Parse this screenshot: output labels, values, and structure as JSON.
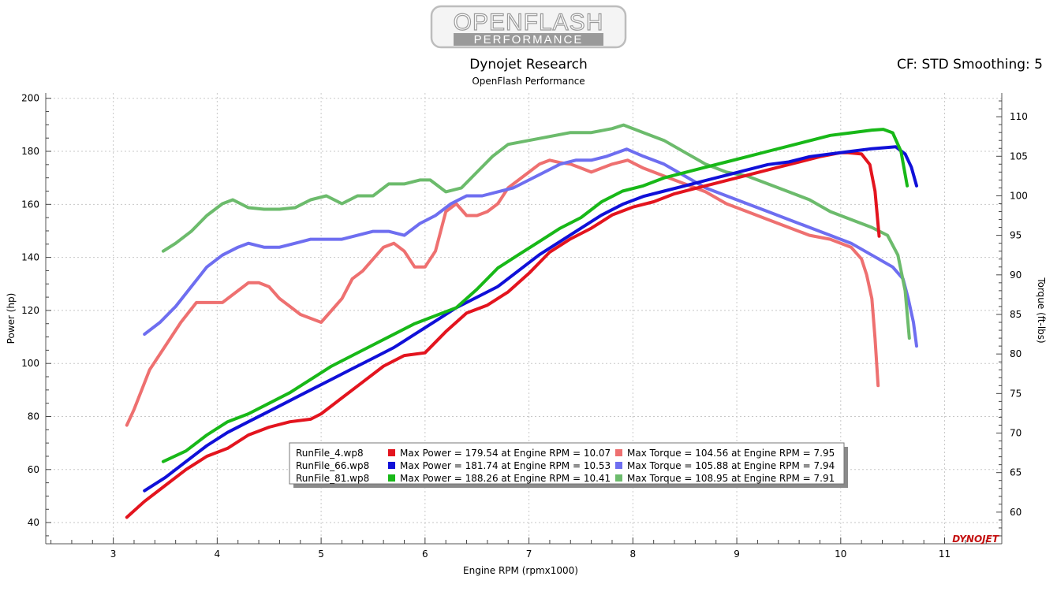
{
  "logo": {
    "line1": "OPENFLASH",
    "line2": "PERFORMANCE"
  },
  "header": {
    "title": "Dynojet Research",
    "subtitle": "OpenFlash Performance",
    "cf_label": "CF: STD Smoothing: 5"
  },
  "brand": "DYNOJET",
  "chart_data": {
    "type": "line",
    "xlabel": "Engine RPM (rpmx1000)",
    "ylabel": "Power (hp)",
    "y2label": "Torque (ft-lbs)",
    "xlim": [
      2.35,
      11.55
    ],
    "ylim": [
      32,
      202
    ],
    "y2lim": [
      56,
      113
    ],
    "xticks": [
      3,
      4,
      5,
      6,
      7,
      8,
      9,
      10,
      11
    ],
    "yticks": [
      40,
      60,
      80,
      100,
      120,
      140,
      160,
      180,
      200
    ],
    "y2ticks": [
      60,
      65,
      70,
      75,
      80,
      85,
      90,
      95,
      100,
      105,
      110
    ],
    "grid": true,
    "legend_position": "bottom-center",
    "series": [
      {
        "name": "RunFile_4.wp8 Power",
        "axis": "left",
        "color": "#e3141e",
        "x": [
          3.13,
          3.3,
          3.5,
          3.7,
          3.9,
          4.1,
          4.3,
          4.5,
          4.7,
          4.9,
          5.0,
          5.2,
          5.4,
          5.6,
          5.8,
          6.0,
          6.2,
          6.4,
          6.6,
          6.8,
          7.0,
          7.2,
          7.4,
          7.6,
          7.8,
          8.0,
          8.2,
          8.4,
          8.6,
          8.8,
          9.0,
          9.2,
          9.4,
          9.6,
          9.8,
          10.0,
          10.07,
          10.2,
          10.28,
          10.33,
          10.37
        ],
        "y": [
          42,
          48,
          54,
          60,
          65,
          68,
          73,
          76,
          78,
          79,
          81,
          87,
          93,
          99,
          103,
          104,
          112,
          119,
          122,
          127,
          134,
          142,
          147,
          151,
          156,
          159,
          161,
          164,
          166,
          168,
          170,
          172,
          174,
          176,
          178,
          179.5,
          179.5,
          179,
          175,
          165,
          148
        ]
      },
      {
        "name": "RunFile_66.wp8 Power",
        "axis": "left",
        "color": "#1010d8",
        "x": [
          3.3,
          3.5,
          3.7,
          3.9,
          4.1,
          4.3,
          4.5,
          4.7,
          4.9,
          5.1,
          5.3,
          5.5,
          5.7,
          5.9,
          6.1,
          6.3,
          6.5,
          6.7,
          6.9,
          7.1,
          7.3,
          7.5,
          7.7,
          7.9,
          8.1,
          8.3,
          8.5,
          8.7,
          8.9,
          9.1,
          9.3,
          9.5,
          9.7,
          9.9,
          10.1,
          10.3,
          10.53,
          10.62,
          10.68,
          10.73
        ],
        "y": [
          52,
          57,
          63,
          69,
          74,
          78,
          82,
          86,
          90,
          94,
          98,
          102,
          106,
          111,
          116,
          121,
          125,
          129,
          135,
          141,
          146,
          151,
          156,
          160,
          163,
          165,
          167,
          169,
          171,
          173,
          175,
          176,
          178,
          179,
          180,
          181,
          181.7,
          179,
          174,
          167
        ]
      },
      {
        "name": "RunFile_81.wp8 Power",
        "axis": "left",
        "color": "#18b818",
        "x": [
          3.48,
          3.7,
          3.9,
          4.1,
          4.3,
          4.5,
          4.7,
          4.9,
          5.1,
          5.3,
          5.5,
          5.7,
          5.9,
          6.1,
          6.3,
          6.5,
          6.7,
          6.9,
          7.1,
          7.3,
          7.5,
          7.7,
          7.9,
          8.1,
          8.3,
          8.5,
          8.7,
          8.9,
          9.1,
          9.3,
          9.5,
          9.7,
          9.9,
          10.1,
          10.3,
          10.41,
          10.5,
          10.58,
          10.64
        ],
        "y": [
          63,
          67,
          73,
          78,
          81,
          85,
          89,
          94,
          99,
          103,
          107,
          111,
          115,
          118,
          121,
          128,
          136,
          141,
          146,
          151,
          155,
          161,
          165,
          167,
          170,
          172,
          174,
          176,
          178,
          180,
          182,
          184,
          186,
          187,
          188,
          188.3,
          187,
          180,
          167
        ]
      },
      {
        "name": "RunFile_4.wp8 Torque",
        "axis": "right",
        "color": "#ee7070",
        "x": [
          3.13,
          3.2,
          3.35,
          3.5,
          3.65,
          3.8,
          3.95,
          4.05,
          4.2,
          4.3,
          4.4,
          4.5,
          4.6,
          4.7,
          4.8,
          4.9,
          5.0,
          5.1,
          5.2,
          5.3,
          5.4,
          5.5,
          5.6,
          5.7,
          5.8,
          5.9,
          6.0,
          6.1,
          6.2,
          6.3,
          6.4,
          6.5,
          6.6,
          6.7,
          6.8,
          6.9,
          7.0,
          7.1,
          7.2,
          7.3,
          7.4,
          7.5,
          7.6,
          7.7,
          7.8,
          7.95,
          8.1,
          8.3,
          8.5,
          8.7,
          8.9,
          9.1,
          9.3,
          9.5,
          9.7,
          9.9,
          10.1,
          10.2,
          10.25,
          10.3,
          10.33,
          10.36
        ],
        "y": [
          71,
          73,
          78,
          81,
          84,
          86.5,
          86.5,
          86.5,
          88,
          89,
          89,
          88.5,
          87,
          86,
          85,
          84.5,
          84,
          85.5,
          87,
          89.5,
          90.5,
          92,
          93.5,
          94,
          93,
          91,
          91,
          93,
          98,
          99,
          97.5,
          97.5,
          98,
          99,
          101,
          102,
          103,
          104,
          104.5,
          104.2,
          104,
          103.5,
          103,
          103.5,
          104,
          104.5,
          103.5,
          102.5,
          101.5,
          100.5,
          99,
          98,
          97,
          96,
          95,
          94.5,
          93.5,
          92,
          90,
          87,
          82,
          76
        ]
      },
      {
        "name": "RunFile_66.wp8 Torque",
        "axis": "right",
        "color": "#6e6ef0",
        "x": [
          3.3,
          3.45,
          3.6,
          3.75,
          3.9,
          4.05,
          4.2,
          4.3,
          4.45,
          4.6,
          4.75,
          4.9,
          5.05,
          5.2,
          5.35,
          5.5,
          5.65,
          5.8,
          5.95,
          6.1,
          6.25,
          6.4,
          6.55,
          6.7,
          6.85,
          7.0,
          7.15,
          7.3,
          7.45,
          7.6,
          7.75,
          7.94,
          8.1,
          8.3,
          8.5,
          8.7,
          8.9,
          9.1,
          9.3,
          9.5,
          9.7,
          9.9,
          10.1,
          10.3,
          10.5,
          10.6,
          10.65,
          10.7,
          10.73
        ],
        "y": [
          82.5,
          84,
          86,
          88.5,
          91,
          92.5,
          93.5,
          94,
          93.5,
          93.5,
          94,
          94.5,
          94.5,
          94.5,
          95,
          95.5,
          95.5,
          95,
          96.5,
          97.5,
          99,
          100,
          100,
          100.5,
          101,
          102,
          103,
          104,
          104.5,
          104.5,
          105,
          105.9,
          105,
          104,
          102.5,
          101,
          100,
          99,
          98,
          97,
          96,
          95,
          94,
          92.5,
          91,
          89.5,
          87,
          84,
          81
        ]
      },
      {
        "name": "RunFile_81.wp8 Torque",
        "axis": "right",
        "color": "#6cbb6c",
        "x": [
          3.48,
          3.6,
          3.75,
          3.9,
          4.05,
          4.15,
          4.3,
          4.45,
          4.6,
          4.75,
          4.9,
          5.05,
          5.2,
          5.35,
          5.5,
          5.65,
          5.8,
          5.95,
          6.05,
          6.2,
          6.35,
          6.5,
          6.65,
          6.8,
          7.0,
          7.2,
          7.4,
          7.6,
          7.8,
          7.91,
          8.1,
          8.3,
          8.5,
          8.7,
          8.9,
          9.1,
          9.3,
          9.5,
          9.7,
          9.9,
          10.1,
          10.3,
          10.45,
          10.55,
          10.62,
          10.66
        ],
        "y": [
          93,
          94,
          95.5,
          97.5,
          99,
          99.5,
          98.5,
          98.3,
          98.3,
          98.5,
          99.5,
          100,
          99,
          100,
          100,
          101.5,
          101.5,
          102,
          102,
          100.5,
          101,
          103,
          105,
          106.5,
          107,
          107.5,
          108,
          108,
          108.5,
          108.95,
          108,
          107,
          105.5,
          104,
          103,
          102.5,
          101.5,
          100.5,
          99.5,
          98,
          97,
          96,
          95,
          92.5,
          88,
          82
        ]
      }
    ],
    "legend": [
      {
        "file": "RunFile_4.wp8",
        "power_color": "#e3141e",
        "power_text": "Max Power = 179.54 at Engine RPM = 10.07",
        "torque_color": "#ee7070",
        "torque_text": "Max Torque = 104.56 at Engine RPM = 7.95"
      },
      {
        "file": "RunFile_66.wp8",
        "power_color": "#1010d8",
        "power_text": "Max Power = 181.74 at Engine RPM = 10.53",
        "torque_color": "#6e6ef0",
        "torque_text": "Max Torque = 105.88 at Engine RPM = 7.94"
      },
      {
        "file": "RunFile_81.wp8",
        "power_color": "#18b818",
        "power_text": "Max Power = 188.26 at Engine RPM = 10.41",
        "torque_color": "#6cbb6c",
        "torque_text": "Max Torque = 108.95 at Engine RPM = 7.91"
      }
    ]
  }
}
